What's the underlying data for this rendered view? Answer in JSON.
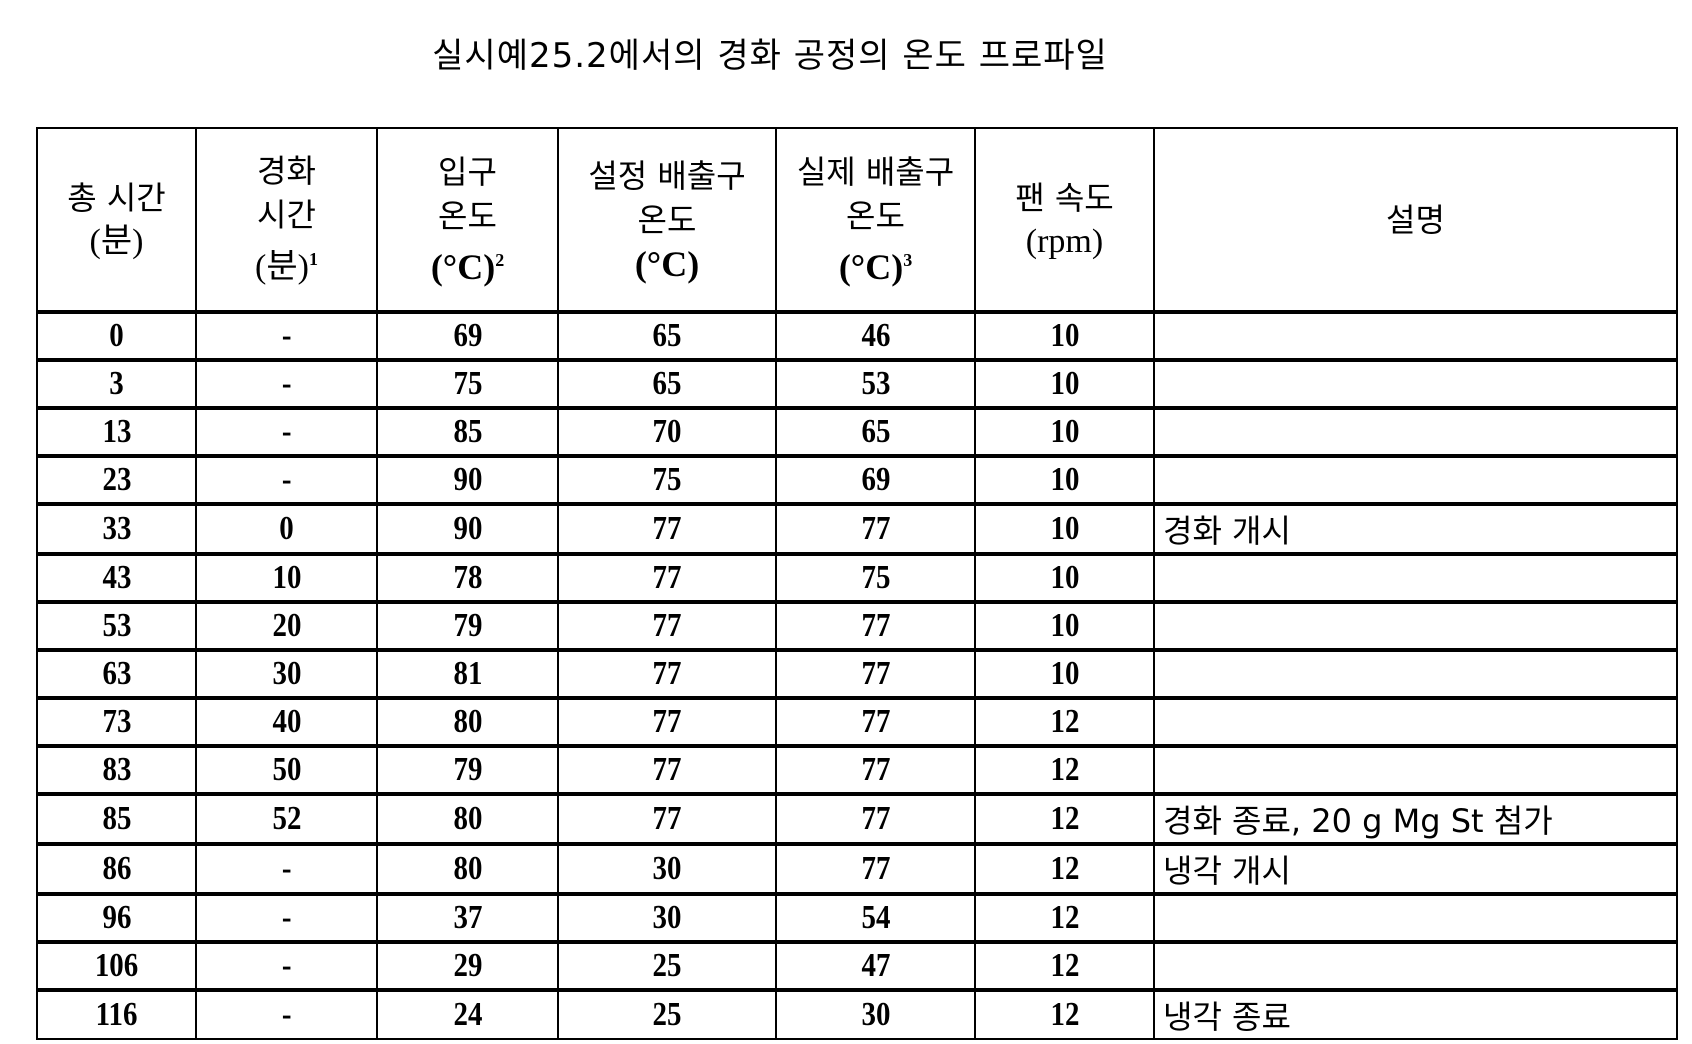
{
  "title": "실시예25.2에서의 경화 공정의 온도 프로파일",
  "headers": [
    {
      "line1": "총 시간",
      "line2": "(분)",
      "line3": "",
      "sup": ""
    },
    {
      "line1": "경화",
      "line2": "시간",
      "line3": "(분)",
      "sup": "1"
    },
    {
      "line1": "입구",
      "line2": "온도",
      "line3": "(°C)",
      "sup": "2"
    },
    {
      "line1": "설정 배출구",
      "line2": "온도",
      "line3": "(°C)",
      "sup": ""
    },
    {
      "line1": "실제 배출구",
      "line2": "온도",
      "line3": "(°C)",
      "sup": "3"
    },
    {
      "line1": "팬 속도",
      "line2": "(rpm)",
      "line3": "",
      "sup": ""
    },
    {
      "line1": "설명",
      "line2": "",
      "line3": "",
      "sup": ""
    }
  ],
  "rows": [
    [
      "0",
      "-",
      "69",
      "65",
      "46",
      "10",
      ""
    ],
    [
      "3",
      "-",
      "75",
      "65",
      "53",
      "10",
      ""
    ],
    [
      "13",
      "-",
      "85",
      "70",
      "65",
      "10",
      ""
    ],
    [
      "23",
      "-",
      "90",
      "75",
      "69",
      "10",
      ""
    ],
    [
      "33",
      "0",
      "90",
      "77",
      "77",
      "10",
      "경화 개시"
    ],
    [
      "43",
      "10",
      "78",
      "77",
      "75",
      "10",
      ""
    ],
    [
      "53",
      "20",
      "79",
      "77",
      "77",
      "10",
      ""
    ],
    [
      "63",
      "30",
      "81",
      "77",
      "77",
      "10",
      ""
    ],
    [
      "73",
      "40",
      "80",
      "77",
      "77",
      "12",
      ""
    ],
    [
      "83",
      "50",
      "79",
      "77",
      "77",
      "12",
      ""
    ],
    [
      "85",
      "52",
      "80",
      "77",
      "77",
      "12",
      "경화 종료, 20 g Mg St 첨가"
    ],
    [
      "86",
      "-",
      "80",
      "30",
      "77",
      "12",
      "냉각 개시"
    ],
    [
      "96",
      "-",
      "37",
      "30",
      "54",
      "12",
      ""
    ],
    [
      "106",
      "-",
      "29",
      "25",
      "47",
      "12",
      ""
    ],
    [
      "116",
      "-",
      "24",
      "25",
      "30",
      "12",
      "냉각 종료"
    ]
  ]
}
